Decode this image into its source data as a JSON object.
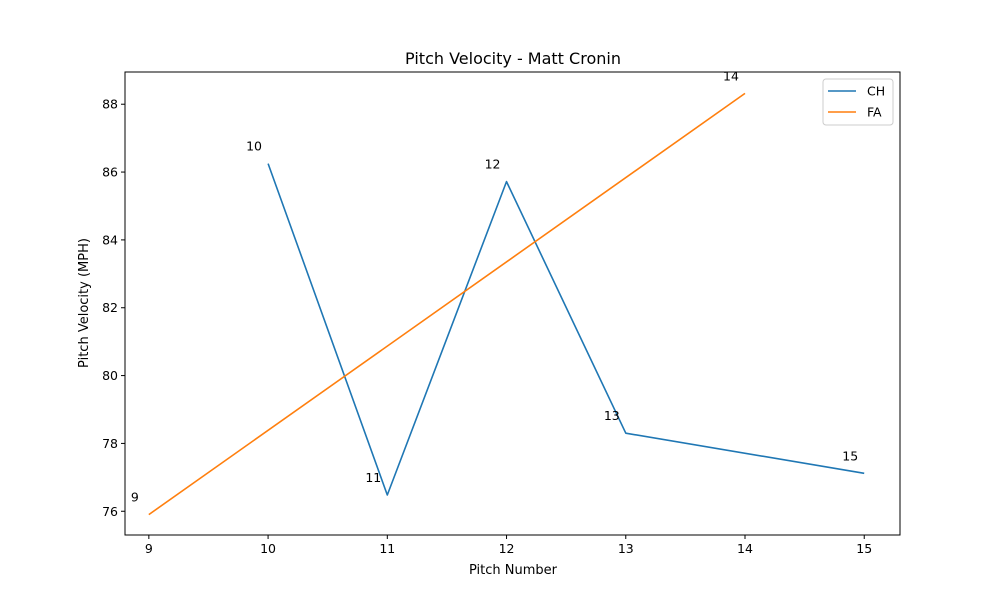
{
  "chart_data": {
    "type": "line",
    "title": "Pitch Velocity - Matt Cronin",
    "xlabel": "Pitch Number",
    "ylabel": "Pitch Velocity (MPH)",
    "xlim": [
      8.8,
      15.3
    ],
    "ylim": [
      75.3,
      88.95
    ],
    "xticks": [
      9,
      10,
      11,
      12,
      13,
      14,
      15
    ],
    "yticks": [
      76,
      78,
      80,
      82,
      84,
      86,
      88
    ],
    "grid": false,
    "legend_position": "top-right",
    "series": [
      {
        "name": "CH",
        "color": "#1f77b4",
        "points": [
          {
            "x": 10,
            "y": 86.25
          },
          {
            "x": 11,
            "y": 76.48
          },
          {
            "x": 12,
            "y": 85.72
          },
          {
            "x": 13,
            "y": 78.3
          },
          {
            "x": 15,
            "y": 77.12
          }
        ]
      },
      {
        "name": "FA",
        "color": "#ff7f0e",
        "points": [
          {
            "x": 9,
            "y": 75.9
          },
          {
            "x": 14,
            "y": 88.32
          }
        ]
      }
    ],
    "annotations": [
      {
        "text": "9",
        "x": 9,
        "y": 75.9
      },
      {
        "text": "10",
        "x": 10,
        "y": 86.25
      },
      {
        "text": "11",
        "x": 11,
        "y": 76.48
      },
      {
        "text": "12",
        "x": 12,
        "y": 85.72
      },
      {
        "text": "13",
        "x": 13,
        "y": 78.3
      },
      {
        "text": "14",
        "x": 14,
        "y": 88.32
      },
      {
        "text": "15",
        "x": 15,
        "y": 77.12
      }
    ]
  }
}
